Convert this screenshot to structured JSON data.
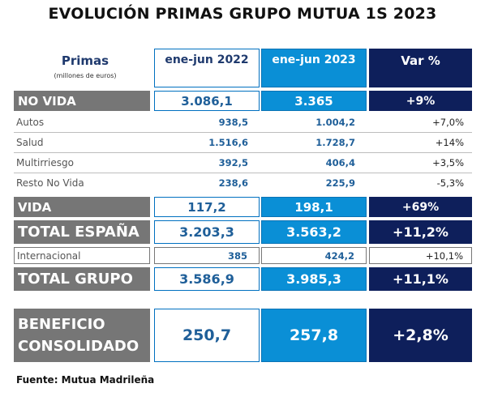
{
  "title": "EVOLUCIÓN PRIMAS GRUPO MUTUA 1S 2023",
  "header": {
    "label": "Primas",
    "sublabel": "(millones de euros)",
    "col1": "ene-jun 2022",
    "col2": "ene-jun 2023",
    "col3": "Var %"
  },
  "rows": [
    {
      "label": "NO VIDA",
      "v2022": "3.086,1",
      "v2023": "3.365",
      "var": "+9%"
    },
    {
      "label": "Autos",
      "v2022": "938,5",
      "v2023": "1.004,2",
      "var": "+7,0%"
    },
    {
      "label": "Salud",
      "v2022": "1.516,6",
      "v2023": "1.728,7",
      "var": "+14%"
    },
    {
      "label": "Multirriesgo",
      "v2022": "392,5",
      "v2023": "406,4",
      "var": "+3,5%"
    },
    {
      "label": "Resto No Vida",
      "v2022": "238,6",
      "v2023": "225,9",
      "var": "-5,3%"
    },
    {
      "label": "VIDA",
      "v2022": "117,2",
      "v2023": "198,1",
      "var": "+69%"
    },
    {
      "label": "TOTAL ESPAÑA",
      "v2022": "3.203,3",
      "v2023": "3.563,2",
      "var": "+11,2%"
    },
    {
      "label": "Internacional",
      "v2022": "385",
      "v2023": "424,2",
      "var": "+10,1%"
    },
    {
      "label": "TOTAL GRUPO",
      "v2022": "3.586,9",
      "v2023": "3.985,3",
      "var": "+11,1%"
    }
  ],
  "beneficio": {
    "label_line1": "BENEFICIO",
    "label_line2": "CONSOLIDADO",
    "v2022": "250,7",
    "v2023": "257,8",
    "var": "+2,8%"
  },
  "footer": "Fuente: Mutua Madrileña"
}
